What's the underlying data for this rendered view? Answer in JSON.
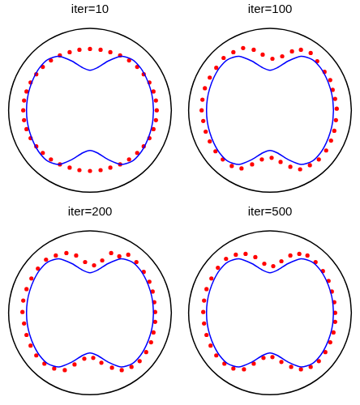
{
  "chart_data": [
    {
      "type": "scatter",
      "title": "iter=10",
      "xlim": [
        -1.08,
        1.08
      ],
      "ylim": [
        -1.1,
        1.1
      ],
      "tick_labels": false,
      "grid": false,
      "series": [
        {
          "type": "line",
          "color": "#000000",
          "line_style": "solid",
          "x": [
            1,
            0.985,
            0.94,
            0.866,
            0.766,
            0.643,
            0.5,
            0.342,
            0.174,
            0,
            -0.174,
            -0.342,
            -0.5,
            -0.643,
            -0.766,
            -0.866,
            -0.94,
            -0.985,
            -1,
            -0.985,
            -0.94,
            -0.866,
            -0.766,
            -0.643,
            -0.5,
            -0.342,
            -0.174,
            0,
            0.174,
            0.342,
            0.5,
            0.643,
            0.766,
            0.866,
            0.94,
            0.985,
            1
          ],
          "values": [
            0,
            0.174,
            0.342,
            0.5,
            0.643,
            0.766,
            0.866,
            0.94,
            0.985,
            1,
            0.985,
            0.94,
            0.866,
            0.766,
            0.643,
            0.5,
            0.342,
            0.174,
            0,
            -0.174,
            -0.342,
            -0.5,
            -0.643,
            -0.766,
            -0.866,
            -0.94,
            -0.985,
            -1,
            -0.985,
            -0.94,
            -0.866,
            -0.766,
            -0.643,
            -0.5,
            -0.342,
            -0.174,
            0
          ]
        },
        {
          "type": "line",
          "color": "#0000ff",
          "line_style": "solid",
          "x": [
            0.78,
            0.77,
            0.74,
            0.69,
            0.62,
            0.52,
            0.38,
            0.22,
            0.09,
            0,
            -0.09,
            -0.22,
            -0.38,
            -0.52,
            -0.62,
            -0.69,
            -0.74,
            -0.77,
            -0.78,
            -0.77,
            -0.74,
            -0.69,
            -0.62,
            -0.52,
            -0.38,
            -0.22,
            -0.09,
            0,
            0.09,
            0.22,
            0.38,
            0.52,
            0.62,
            0.69,
            0.74,
            0.77,
            0.78
          ],
          "values": [
            0,
            0.14,
            0.27,
            0.4,
            0.52,
            0.62,
            0.66,
            0.6,
            0.52,
            0.49,
            0.52,
            0.6,
            0.66,
            0.62,
            0.52,
            0.4,
            0.27,
            0.14,
            0,
            -0.14,
            -0.27,
            -0.4,
            -0.52,
            -0.62,
            -0.66,
            -0.6,
            -0.52,
            -0.49,
            -0.52,
            -0.6,
            -0.66,
            -0.62,
            -0.52,
            -0.4,
            -0.27,
            -0.14,
            0
          ]
        },
        {
          "type": "scatter",
          "color": "#ff0000",
          "marker": "circle",
          "x": [
            0.82,
            0.81,
            0.78,
            0.73,
            0.66,
            0.58,
            0.48,
            0.37,
            0.25,
            0.13,
            0,
            -0.13,
            -0.25,
            -0.37,
            -0.48,
            -0.58,
            -0.66,
            -0.73,
            -0.78,
            -0.81,
            -0.82,
            -0.81,
            -0.78,
            -0.73,
            -0.66,
            -0.58,
            -0.48,
            -0.37,
            -0.25,
            -0.13,
            0,
            0.13,
            0.25,
            0.37,
            0.48,
            0.58,
            0.66,
            0.73,
            0.78,
            0.81
          ],
          "values": [
            0,
            0.12,
            0.23,
            0.34,
            0.44,
            0.53,
            0.61,
            0.67,
            0.71,
            0.74,
            0.75,
            0.74,
            0.71,
            0.67,
            0.61,
            0.53,
            0.44,
            0.34,
            0.23,
            0.12,
            0,
            -0.12,
            -0.23,
            -0.34,
            -0.44,
            -0.52,
            -0.6,
            -0.66,
            -0.7,
            -0.73,
            -0.74,
            -0.73,
            -0.7,
            -0.66,
            -0.6,
            -0.52,
            -0.44,
            -0.34,
            -0.23,
            -0.12
          ]
        }
      ]
    },
    {
      "type": "scatter",
      "title": "iter=100",
      "xlim": [
        -1.08,
        1.08
      ],
      "ylim": [
        -1.1,
        1.1
      ],
      "tick_labels": false,
      "grid": false,
      "series": [
        {
          "type": "line",
          "color": "#000000",
          "line_style": "solid",
          "x": [
            1,
            0.985,
            0.94,
            0.866,
            0.766,
            0.643,
            0.5,
            0.342,
            0.174,
            0,
            -0.174,
            -0.342,
            -0.5,
            -0.643,
            -0.766,
            -0.866,
            -0.94,
            -0.985,
            -1,
            -0.985,
            -0.94,
            -0.866,
            -0.766,
            -0.643,
            -0.5,
            -0.342,
            -0.174,
            0,
            0.174,
            0.342,
            0.5,
            0.643,
            0.766,
            0.866,
            0.94,
            0.985,
            1
          ],
          "values": [
            0,
            0.174,
            0.342,
            0.5,
            0.643,
            0.766,
            0.866,
            0.94,
            0.985,
            1,
            0.985,
            0.94,
            0.866,
            0.766,
            0.643,
            0.5,
            0.342,
            0.174,
            0,
            -0.174,
            -0.342,
            -0.5,
            -0.643,
            -0.766,
            -0.866,
            -0.94,
            -0.985,
            -1,
            -0.985,
            -0.94,
            -0.866,
            -0.766,
            -0.643,
            -0.5,
            -0.342,
            -0.174,
            0
          ]
        },
        {
          "type": "line",
          "color": "#0000ff",
          "line_style": "solid",
          "x": [
            0.78,
            0.77,
            0.74,
            0.69,
            0.62,
            0.52,
            0.38,
            0.22,
            0.09,
            0,
            -0.09,
            -0.22,
            -0.38,
            -0.52,
            -0.62,
            -0.69,
            -0.74,
            -0.77,
            -0.78,
            -0.77,
            -0.74,
            -0.69,
            -0.62,
            -0.52,
            -0.38,
            -0.22,
            -0.09,
            0,
            0.09,
            0.22,
            0.38,
            0.52,
            0.62,
            0.69,
            0.74,
            0.77,
            0.78
          ],
          "values": [
            0,
            0.14,
            0.27,
            0.4,
            0.52,
            0.62,
            0.66,
            0.6,
            0.52,
            0.49,
            0.52,
            0.6,
            0.66,
            0.62,
            0.52,
            0.4,
            0.27,
            0.14,
            0,
            -0.14,
            -0.27,
            -0.4,
            -0.52,
            -0.62,
            -0.66,
            -0.6,
            -0.52,
            -0.49,
            -0.52,
            -0.6,
            -0.66,
            -0.62,
            -0.52,
            -0.4,
            -0.27,
            -0.14,
            0
          ]
        },
        {
          "type": "scatter",
          "color": "#ff0000",
          "marker": "circle",
          "x": [
            0.82,
            0.8,
            0.77,
            0.74,
            0.67,
            0.58,
            0.5,
            0.38,
            0.27,
            0.15,
            0.03,
            -0.09,
            -0.2,
            -0.33,
            -0.45,
            -0.57,
            -0.66,
            -0.74,
            -0.8,
            -0.83,
            -0.84,
            -0.82,
            -0.79,
            -0.74,
            -0.67,
            -0.58,
            -0.47,
            -0.35,
            -0.22,
            -0.1,
            0.02,
            0.13,
            0.25,
            0.37,
            0.49,
            0.6,
            0.69,
            0.75,
            0.79,
            0.81
          ],
          "values": [
            0.02,
            0.14,
            0.25,
            0.37,
            0.47,
            0.6,
            0.7,
            0.74,
            0.72,
            0.66,
            0.63,
            0.68,
            0.74,
            0.76,
            0.71,
            0.64,
            0.52,
            0.4,
            0.27,
            0.13,
            0,
            -0.13,
            -0.26,
            -0.38,
            -0.5,
            -0.6,
            -0.68,
            -0.71,
            -0.66,
            -0.6,
            -0.58,
            -0.63,
            -0.69,
            -0.72,
            -0.67,
            -0.6,
            -0.49,
            -0.37,
            -0.25,
            -0.12
          ]
        }
      ]
    },
    {
      "type": "scatter",
      "title": "iter=200",
      "xlim": [
        -1.08,
        1.08
      ],
      "ylim": [
        -1.1,
        1.1
      ],
      "tick_labels": false,
      "grid": false,
      "series": [
        {
          "type": "line",
          "color": "#000000",
          "line_style": "solid",
          "x": [
            1,
            0.985,
            0.94,
            0.866,
            0.766,
            0.643,
            0.5,
            0.342,
            0.174,
            0,
            -0.174,
            -0.342,
            -0.5,
            -0.643,
            -0.766,
            -0.866,
            -0.94,
            -0.985,
            -1,
            -0.985,
            -0.94,
            -0.866,
            -0.766,
            -0.643,
            -0.5,
            -0.342,
            -0.174,
            0,
            0.174,
            0.342,
            0.5,
            0.643,
            0.766,
            0.866,
            0.94,
            0.985,
            1
          ],
          "values": [
            0,
            0.174,
            0.342,
            0.5,
            0.643,
            0.766,
            0.866,
            0.94,
            0.985,
            1,
            0.985,
            0.94,
            0.866,
            0.766,
            0.643,
            0.5,
            0.342,
            0.174,
            0,
            -0.174,
            -0.342,
            -0.5,
            -0.643,
            -0.766,
            -0.866,
            -0.94,
            -0.985,
            -1,
            -0.985,
            -0.94,
            -0.866,
            -0.766,
            -0.643,
            -0.5,
            -0.342,
            -0.174,
            0
          ]
        },
        {
          "type": "line",
          "color": "#0000ff",
          "line_style": "solid",
          "x": [
            0.78,
            0.77,
            0.74,
            0.69,
            0.62,
            0.52,
            0.38,
            0.22,
            0.09,
            0,
            -0.09,
            -0.22,
            -0.38,
            -0.52,
            -0.62,
            -0.69,
            -0.74,
            -0.77,
            -0.78,
            -0.77,
            -0.74,
            -0.69,
            -0.62,
            -0.52,
            -0.38,
            -0.22,
            -0.09,
            0,
            0.09,
            0.22,
            0.38,
            0.52,
            0.62,
            0.69,
            0.74,
            0.77,
            0.78
          ],
          "values": [
            0,
            0.14,
            0.27,
            0.4,
            0.52,
            0.62,
            0.66,
            0.6,
            0.52,
            0.49,
            0.52,
            0.6,
            0.66,
            0.62,
            0.52,
            0.4,
            0.27,
            0.14,
            0,
            -0.14,
            -0.27,
            -0.4,
            -0.52,
            -0.62,
            -0.66,
            -0.6,
            -0.52,
            -0.49,
            -0.52,
            -0.6,
            -0.66,
            -0.62,
            -0.52,
            -0.4,
            -0.27,
            -0.14,
            0
          ]
        },
        {
          "type": "scatter",
          "color": "#ff0000",
          "marker": "circle",
          "x": [
            0.8,
            0.79,
            0.77,
            0.73,
            0.66,
            0.57,
            0.47,
            0.36,
            0.26,
            0.15,
            0.05,
            -0.06,
            -0.17,
            -0.29,
            -0.42,
            -0.54,
            -0.64,
            -0.72,
            -0.78,
            -0.82,
            -0.83,
            -0.81,
            -0.78,
            -0.73,
            -0.66,
            -0.56,
            -0.44,
            -0.31,
            -0.19,
            -0.07,
            0.04,
            0.14,
            0.27,
            0.39,
            0.51,
            0.61,
            0.69,
            0.75,
            0.78,
            0.8
          ],
          "values": [
            0.01,
            0.13,
            0.26,
            0.38,
            0.5,
            0.62,
            0.71,
            0.69,
            0.73,
            0.64,
            0.58,
            0.62,
            0.7,
            0.73,
            0.7,
            0.65,
            0.54,
            0.42,
            0.29,
            0.15,
            0.01,
            -0.13,
            -0.27,
            -0.4,
            -0.52,
            -0.62,
            -0.68,
            -0.7,
            -0.63,
            -0.56,
            -0.55,
            -0.61,
            -0.67,
            -0.7,
            -0.66,
            -0.59,
            -0.48,
            -0.36,
            -0.24,
            -0.11
          ]
        }
      ]
    },
    {
      "type": "scatter",
      "title": "iter=500",
      "xlim": [
        -1.08,
        1.08
      ],
      "ylim": [
        -1.1,
        1.1
      ],
      "tick_labels": false,
      "grid": false,
      "series": [
        {
          "type": "line",
          "color": "#000000",
          "line_style": "solid",
          "x": [
            1,
            0.985,
            0.94,
            0.866,
            0.766,
            0.643,
            0.5,
            0.342,
            0.174,
            0,
            -0.174,
            -0.342,
            -0.5,
            -0.643,
            -0.766,
            -0.866,
            -0.94,
            -0.985,
            -1,
            -0.985,
            -0.94,
            -0.866,
            -0.766,
            -0.643,
            -0.5,
            -0.342,
            -0.174,
            0,
            0.174,
            0.342,
            0.5,
            0.643,
            0.766,
            0.866,
            0.94,
            0.985,
            1
          ],
          "values": [
            0,
            0.174,
            0.342,
            0.5,
            0.643,
            0.766,
            0.866,
            0.94,
            0.985,
            1,
            0.985,
            0.94,
            0.866,
            0.766,
            0.643,
            0.5,
            0.342,
            0.174,
            0,
            -0.174,
            -0.342,
            -0.5,
            -0.643,
            -0.766,
            -0.866,
            -0.94,
            -0.985,
            -1,
            -0.985,
            -0.94,
            -0.866,
            -0.766,
            -0.643,
            -0.5,
            -0.342,
            -0.174,
            0
          ]
        },
        {
          "type": "line",
          "color": "#0000ff",
          "line_style": "solid",
          "x": [
            0.78,
            0.77,
            0.74,
            0.69,
            0.62,
            0.52,
            0.38,
            0.22,
            0.09,
            0,
            -0.09,
            -0.22,
            -0.38,
            -0.52,
            -0.62,
            -0.69,
            -0.74,
            -0.77,
            -0.78,
            -0.77,
            -0.74,
            -0.69,
            -0.62,
            -0.52,
            -0.38,
            -0.22,
            -0.09,
            0,
            0.09,
            0.22,
            0.38,
            0.52,
            0.62,
            0.69,
            0.74,
            0.77,
            0.78
          ],
          "values": [
            0,
            0.14,
            0.27,
            0.4,
            0.52,
            0.62,
            0.66,
            0.6,
            0.52,
            0.49,
            0.52,
            0.6,
            0.66,
            0.62,
            0.52,
            0.4,
            0.27,
            0.14,
            0,
            -0.14,
            -0.27,
            -0.4,
            -0.52,
            -0.62,
            -0.66,
            -0.6,
            -0.52,
            -0.49,
            -0.52,
            -0.6,
            -0.66,
            -0.62,
            -0.52,
            -0.4,
            -0.27,
            -0.14,
            0
          ]
        },
        {
          "type": "scatter",
          "color": "#ff0000",
          "marker": "circle",
          "x": [
            0.8,
            0.79,
            0.76,
            0.72,
            0.65,
            0.56,
            0.46,
            0.36,
            0.25,
            0.14,
            0.04,
            -0.07,
            -0.18,
            -0.3,
            -0.42,
            -0.54,
            -0.64,
            -0.72,
            -0.78,
            -0.81,
            -0.82,
            -0.81,
            -0.78,
            -0.73,
            -0.66,
            -0.56,
            -0.45,
            -0.32,
            -0.2,
            -0.08,
            0.03,
            0.14,
            0.26,
            0.38,
            0.5,
            0.6,
            0.68,
            0.74,
            0.78,
            0.8
          ],
          "values": [
            0,
            0.13,
            0.26,
            0.39,
            0.51,
            0.62,
            0.7,
            0.72,
            0.7,
            0.63,
            0.57,
            0.6,
            0.68,
            0.72,
            0.71,
            0.66,
            0.55,
            0.42,
            0.29,
            0.15,
            0.01,
            -0.13,
            -0.27,
            -0.4,
            -0.52,
            -0.62,
            -0.68,
            -0.69,
            -0.62,
            -0.55,
            -0.54,
            -0.6,
            -0.66,
            -0.69,
            -0.66,
            -0.59,
            -0.48,
            -0.36,
            -0.24,
            -0.11
          ]
        }
      ]
    }
  ]
}
